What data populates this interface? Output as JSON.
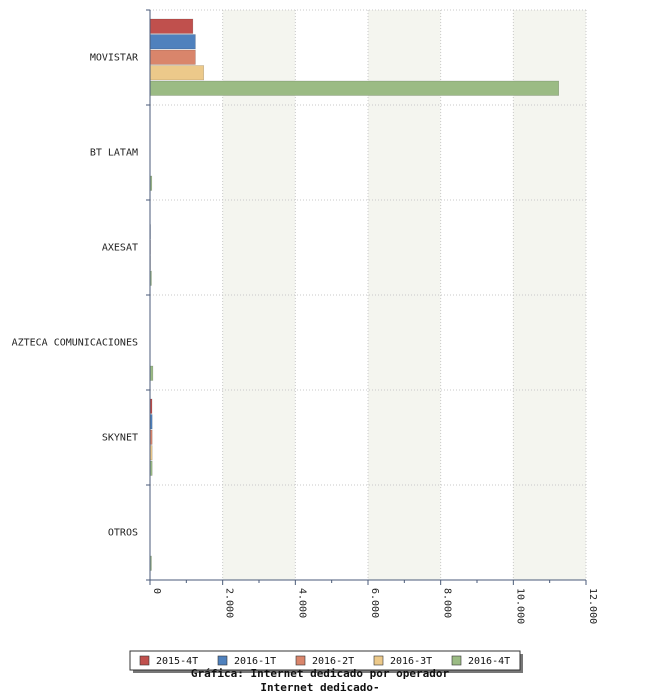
{
  "chart_data": {
    "type": "bar",
    "orientation": "horizontal",
    "title": "Gráfica: Internet dedicado por operador",
    "subtitle": "Internet dedicado-",
    "categories": [
      "MOVISTAR",
      "BT LATAM",
      "AXESAT",
      "AZTECA COMUNICACIONES",
      "SKYNET",
      "OTROS"
    ],
    "series": [
      {
        "name": "2015-4T",
        "color": "#c0504d",
        "values": [
          1180,
          0,
          0,
          0,
          55,
          0
        ]
      },
      {
        "name": "2016-1T",
        "color": "#4f81bd",
        "values": [
          1250,
          0,
          15,
          0,
          60,
          0
        ]
      },
      {
        "name": "2016-2T",
        "color": "#d9856b",
        "values": [
          1250,
          0,
          15,
          0,
          60,
          0
        ]
      },
      {
        "name": "2016-3T",
        "color": "#ecc98a",
        "values": [
          1480,
          0,
          15,
          0,
          60,
          0
        ]
      },
      {
        "name": "2016-4T",
        "color": "#9bbb84",
        "values": [
          11250,
          50,
          40,
          80,
          60,
          40
        ]
      }
    ],
    "xlim": [
      0,
      12000
    ],
    "ticks": [
      0,
      2000,
      4000,
      6000,
      8000,
      10000,
      12000
    ],
    "tick_labels": [
      "0",
      "2.000",
      "4.000",
      "6.000",
      "8.000",
      "10.000",
      "12.000"
    ],
    "grid": true,
    "legend_position": "bottom"
  }
}
